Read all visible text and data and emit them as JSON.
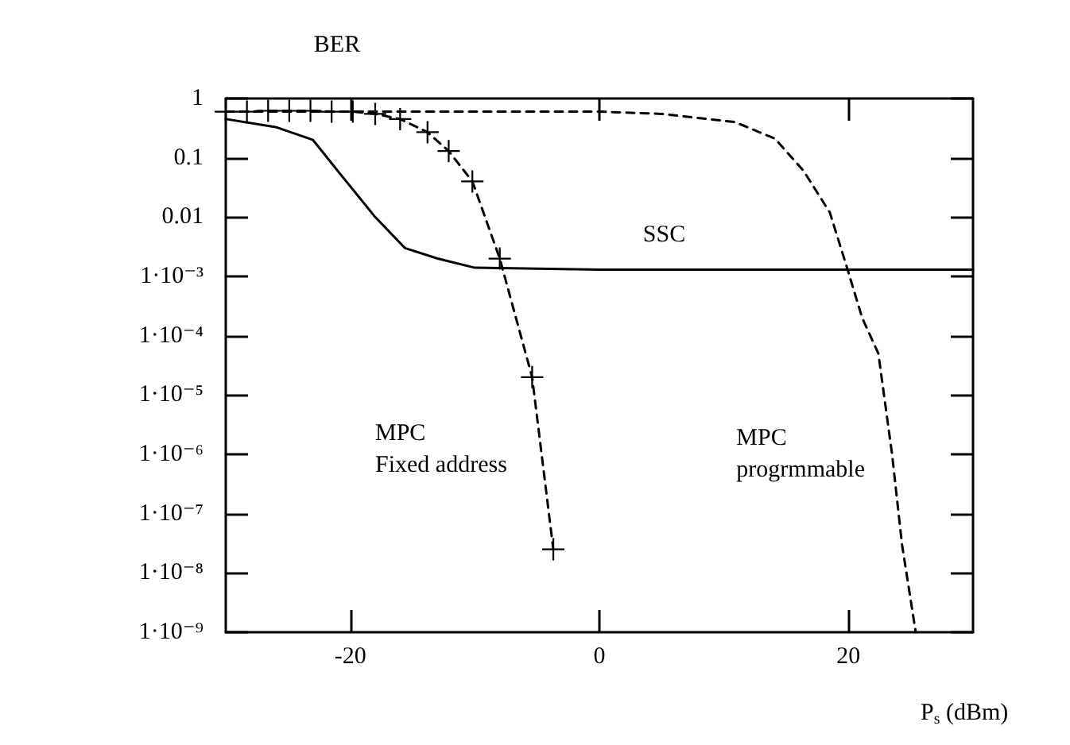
{
  "chart_data": {
    "type": "line",
    "xlabel": "P$_{s}$ (dBm)",
    "ylabel": "BER",
    "log": "y",
    "grid": false,
    "legend": false,
    "xlim": [
      -30,
      30
    ],
    "xticks": [
      -20,
      0,
      20
    ],
    "ylim": [
      1e-09,
      1
    ],
    "yticks": [
      {
        "value": 1e-09,
        "label": "1·10⁻⁹"
      },
      {
        "value": 1e-08,
        "label": "1·10⁻⁸"
      },
      {
        "value": 1e-07,
        "label": "1·10⁻⁷"
      },
      {
        "value": 1e-06,
        "label": "1·10⁻⁶"
      },
      {
        "value": 1e-05,
        "label": "1·10⁻⁵"
      },
      {
        "value": 0.0001,
        "label": "1·10⁻⁴"
      },
      {
        "value": 0.001,
        "label": "1·10⁻³"
      },
      {
        "value": 0.01,
        "label": "0.01"
      },
      {
        "value": 0.1,
        "label": "0.1"
      },
      {
        "value": 1,
        "label": "1"
      }
    ],
    "series": [
      {
        "name": "SSC",
        "color": "#000000",
        "line_style": "solid",
        "marker": "none",
        "x": [
          -30,
          -26,
          -23,
          -20.7,
          -18,
          -15.6,
          -13,
          -10,
          0,
          10,
          20,
          30
        ],
        "values": [
          0.45,
          0.33,
          0.2,
          0.05,
          0.01,
          0.003,
          0.002,
          0.0014,
          0.0013,
          0.0013,
          0.0013,
          0.0013
        ]
      },
      {
        "name": "MPC\nFixed address",
        "color": "#000000",
        "line_style": "dashed",
        "marker": "cross",
        "x": [
          -30,
          -28.3,
          -26.6,
          -24.9,
          -23.2,
          -21.5,
          -19.8,
          -18,
          -16,
          -13.8,
          -12.1,
          -10.2,
          -8,
          -5.4,
          -3.7
        ],
        "values": [
          0.6,
          0.6,
          0.62,
          0.62,
          0.62,
          0.6,
          0.6,
          0.55,
          0.45,
          0.27,
          0.13,
          0.04,
          0.002,
          2e-05,
          2.5e-08
        ]
      },
      {
        "name": "MPC\nprogrmmable",
        "color": "#000000",
        "line_style": "dashed",
        "marker": "none",
        "x": [
          -30,
          -10,
          0,
          5,
          10.9,
          14.1,
          16.4,
          18.5,
          19.8,
          21.1,
          22.4,
          23.5,
          24.3,
          25.4
        ],
        "values": [
          0.6,
          0.6,
          0.6,
          0.55,
          0.4,
          0.21,
          0.06,
          0.012,
          0.0016,
          0.0002,
          5e-05,
          1e-06,
          3e-08,
          1e-09
        ]
      }
    ]
  }
}
